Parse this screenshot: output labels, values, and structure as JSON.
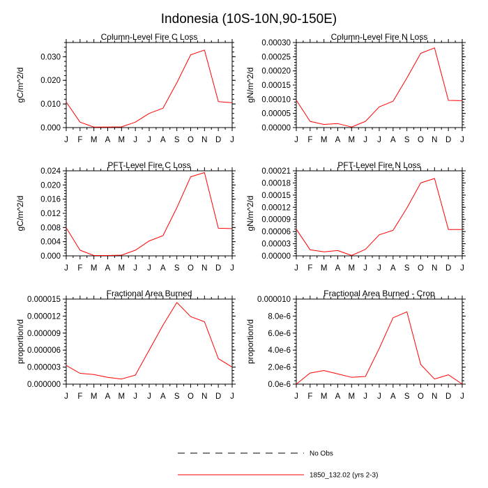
{
  "title": "Indonesia (10S-10N,90-150E)",
  "month_labels": [
    "J",
    "F",
    "M",
    "A",
    "M",
    "J",
    "J",
    "A",
    "S",
    "O",
    "N",
    "D",
    "J"
  ],
  "legend": {
    "obs_label": "No Obs",
    "model_label": "1850_132.02 (yrs 2-3)",
    "model_color": "#ff0000",
    "obs_color": "#000000"
  },
  "chart_data": [
    {
      "type": "line",
      "title": "Column-Level Fire C Loss",
      "ylabel": "gC/m^2/d",
      "ylim": [
        0,
        0.036
      ],
      "yticks": [
        "0.000",
        "0.010",
        "0.020",
        "0.030"
      ],
      "ytick_values": [
        0,
        0.01,
        0.02,
        0.03
      ],
      "x": [
        "J",
        "F",
        "M",
        "A",
        "M",
        "J",
        "J",
        "A",
        "S",
        "O",
        "N",
        "D",
        "J"
      ],
      "series": [
        {
          "values": [
            0.0108,
            0.0023,
            0.0002,
            0.0002,
            0.0003,
            0.0023,
            0.006,
            0.0082,
            0.019,
            0.0308,
            0.0328,
            0.011,
            0.0105
          ]
        }
      ]
    },
    {
      "type": "line",
      "title": "Column-Level Fire N Loss",
      "ylabel": "gN/m^2/d",
      "ylim": [
        0,
        0.0003
      ],
      "yticks": [
        "0.00000",
        "0.00005",
        "0.00010",
        "0.00015",
        "0.00020",
        "0.00025",
        "0.00030"
      ],
      "ytick_values": [
        0,
        5e-05,
        0.0001,
        0.00015,
        0.0002,
        0.00025,
        0.0003
      ],
      "x": [
        "J",
        "F",
        "M",
        "A",
        "M",
        "J",
        "J",
        "A",
        "S",
        "O",
        "N",
        "D",
        "J"
      ],
      "series": [
        {
          "values": [
            9.7e-05,
            2.2e-05,
            1.1e-05,
            1.4e-05,
            2e-06,
            2.2e-05,
            7.3e-05,
            9.3e-05,
            0.000175,
            0.000262,
            0.000281,
            9.6e-05,
            9.5e-05
          ]
        }
      ]
    },
    {
      "type": "line",
      "title": "PFT-Level Fire C Loss",
      "ylabel": "gC/m^2/d",
      "ylim": [
        0,
        0.024
      ],
      "yticks": [
        "0.000",
        "0.004",
        "0.008",
        "0.012",
        "0.016",
        "0.020",
        "0.024"
      ],
      "ytick_values": [
        0,
        0.004,
        0.008,
        0.012,
        0.016,
        0.02,
        0.024
      ],
      "x": [
        "J",
        "F",
        "M",
        "A",
        "M",
        "J",
        "J",
        "A",
        "S",
        "O",
        "N",
        "D",
        "J"
      ],
      "series": [
        {
          "values": [
            0.0079,
            0.0016,
            0.0001,
            0.0001,
            0.0002,
            0.0016,
            0.0042,
            0.0057,
            0.0136,
            0.0223,
            0.0235,
            0.0078,
            0.0077
          ]
        }
      ]
    },
    {
      "type": "line",
      "title": "PFT-Level Fire N Loss",
      "ylabel": "gN/m^2/d",
      "ylim": [
        0,
        0.00021
      ],
      "yticks": [
        "0.00000",
        "0.00003",
        "0.00006",
        "0.00009",
        "0.00012",
        "0.00015",
        "0.00018",
        "0.00021"
      ],
      "ytick_values": [
        0,
        3e-05,
        6e-05,
        9e-05,
        0.00012,
        0.00015,
        0.00018,
        0.00021
      ],
      "x": [
        "J",
        "F",
        "M",
        "A",
        "M",
        "J",
        "J",
        "A",
        "S",
        "O",
        "N",
        "D",
        "J"
      ],
      "series": [
        {
          "values": [
            6.6e-05,
            1.5e-05,
            1e-05,
            1.3e-05,
            1e-06,
            1.6e-05,
            5.2e-05,
            6.3e-05,
            0.000118,
            0.00018,
            0.000191,
            6.5e-05,
            6.5e-05
          ]
        }
      ]
    },
    {
      "type": "line",
      "title": "Fractional Area Burned",
      "ylabel": "proportion/d",
      "ylim": [
        0,
        1.5e-05
      ],
      "yticks": [
        "0.000000",
        "0.000003",
        "0.000006",
        "0.000009",
        "0.000012",
        "0.000015"
      ],
      "ytick_values": [
        0,
        3e-06,
        6e-06,
        9e-06,
        1.2e-05,
        1.5e-05
      ],
      "x": [
        "J",
        "F",
        "M",
        "A",
        "M",
        "J",
        "J",
        "A",
        "S",
        "O",
        "N",
        "D",
        "J"
      ],
      "series": [
        {
          "values": [
            3.3e-06,
            1.9e-06,
            1.7e-06,
            1.2e-06,
            9e-07,
            1.6e-06,
            6e-06,
            1.04e-05,
            1.44e-05,
            1.19e-05,
            1.1e-05,
            4.5e-06,
            3e-06
          ]
        }
      ]
    },
    {
      "type": "line",
      "title": "Fractional Area Burned - Crop",
      "ylabel": "proportion/d",
      "ylim": [
        0,
        1e-05
      ],
      "yticks": [
        "0.0e-6",
        "2.0e-6",
        "4.0e-6",
        "6.0e-6",
        "8.0e-6",
        "0.000010"
      ],
      "ytick_values": [
        0,
        2e-06,
        4e-06,
        6e-06,
        8e-06,
        1e-05
      ],
      "x": [
        "J",
        "F",
        "M",
        "A",
        "M",
        "J",
        "J",
        "A",
        "S",
        "O",
        "N",
        "D",
        "J"
      ],
      "series": [
        {
          "values": [
            0.0,
            1.3e-06,
            1.6e-06,
            1.2e-06,
            8e-07,
            9e-07,
            4.2e-06,
            7.8e-06,
            8.5e-06,
            2.3e-06,
            6e-07,
            1.1e-06,
            0.0
          ]
        }
      ]
    }
  ]
}
